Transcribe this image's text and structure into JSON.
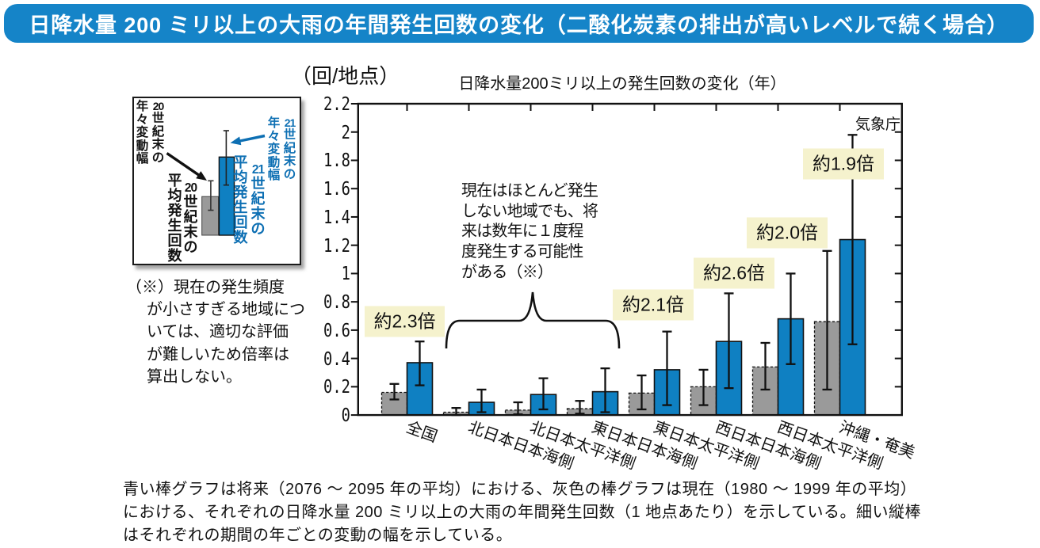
{
  "header": {
    "title": "日降水量 200 ミリ以上の大雨の年間発生回数の変化（二酸化炭素の排出が高いレベルで続く場合）"
  },
  "colors": {
    "header_blue": "#1584c8",
    "bar_blue": "#0f80c2",
    "bar_gray": "#9a9a9a",
    "label_yellow": "#f5f2cd",
    "legend_blue_text": "#0d6fb3",
    "ink": "#1a1a1a"
  },
  "legend_inset": {
    "labels": [
      {
        "id": "gray-variation",
        "color": "black",
        "right_column": "20世紀末の",
        "left_column": "年々変動幅"
      },
      {
        "id": "gray-mean",
        "color": "black",
        "right_column": "20世紀末の",
        "left_column": "平均発生回数"
      },
      {
        "id": "blue-variation",
        "color": "blue",
        "right_column": "21世紀末の",
        "left_column": "年々変動幅"
      },
      {
        "id": "blue-mean",
        "color": "blue",
        "right_column": "21世紀末の",
        "left_column": "平均発生回数"
      }
    ]
  },
  "footnote": {
    "lines": [
      "（※）現在の発生頻度",
      "が小さすぎる地域につ",
      "いては、適切な評価",
      "が難しいため倍率は",
      "算出しない。"
    ]
  },
  "chart_data": {
    "type": "bar",
    "title": "日降水量200ミリ以上の発生回数の変化（年）",
    "unit_label": "（回/地点）",
    "source_label": "気象庁",
    "ylim": [
      0,
      2.2
    ],
    "ytick_step": 0.2,
    "ytick_labels": [
      "0",
      "0.2",
      "0.4",
      "0.6",
      "0.8",
      "1",
      "1.2",
      "1.4",
      "1.6",
      "1.8",
      "2",
      "2.2"
    ],
    "categories": [
      "全国",
      "北日本日本海側",
      "北日本太平洋側",
      "東日本日本海側",
      "東日本太平洋側",
      "西日本日本海側",
      "西日本太平洋側",
      "沖縄・奄美"
    ],
    "series": [
      {
        "name": "現在（1980～1999年の平均）",
        "color_key": "bar_gray",
        "values": [
          0.16,
          0.02,
          0.035,
          0.045,
          0.155,
          0.2,
          0.34,
          0.66
        ],
        "err_low": [
          0.11,
          0.0,
          0.005,
          0.01,
          0.04,
          0.07,
          0.18,
          0.18
        ],
        "err_high": [
          0.22,
          0.05,
          0.09,
          0.1,
          0.28,
          0.32,
          0.51,
          1.16
        ]
      },
      {
        "name": "将来（2076～2095年の平均）",
        "color_key": "bar_blue",
        "values": [
          0.37,
          0.09,
          0.145,
          0.165,
          0.32,
          0.52,
          0.68,
          1.24
        ],
        "err_low": [
          0.21,
          0.02,
          0.04,
          0.02,
          0.07,
          0.19,
          0.36,
          0.5
        ],
        "err_high": [
          0.52,
          0.18,
          0.26,
          0.33,
          0.59,
          0.86,
          1.0,
          1.98
        ]
      }
    ],
    "multipliers": [
      {
        "category": "全国",
        "text": "約2.3倍"
      },
      {
        "category": "東日本太平洋側",
        "text": "約2.1倍"
      },
      {
        "category": "西日本日本海側",
        "text": "約2.6倍"
      },
      {
        "category": "西日本太平洋側",
        "text": "約2.0倍"
      },
      {
        "category": "沖縄・奄美",
        "text": "約1.9倍"
      }
    ],
    "annotation_lines": [
      "現在はほとんど発生",
      "しない地域でも、将",
      "来は数年に１度程",
      "度発生する可能性",
      "がある（※）"
    ],
    "legend_position": "inset box at upper left, outside plot",
    "grid": false
  },
  "caption": {
    "lines": [
      "青い棒グラフは将来（2076 ～ 2095 年の平均）における、灰色の棒グラフは現在（1980 ～ 1999 年の平均）",
      "における、それぞれの日降水量 200 ミリ以上の大雨の年間発生回数（1 地点あたり）を示している。細い縦棒",
      "はそれぞれの期間の年ごとの変動の幅を示している。"
    ]
  }
}
